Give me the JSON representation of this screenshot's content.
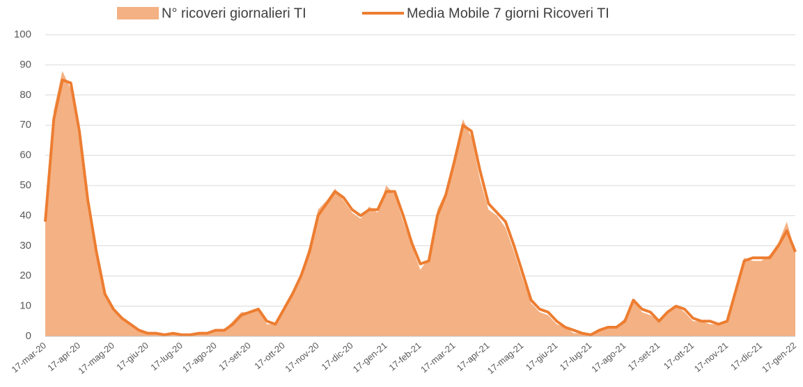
{
  "chart_data": {
    "type": "area-line",
    "categories": [
      "17-mar-20",
      null,
      null,
      null,
      "17-apr-20",
      null,
      null,
      null,
      "17-mag-20",
      null,
      null,
      null,
      "17-giu-20",
      null,
      null,
      null,
      "17-lug-20",
      null,
      null,
      null,
      "17-ago-20",
      null,
      null,
      null,
      "17-set-20",
      null,
      null,
      null,
      "17-ott-20",
      null,
      null,
      null,
      "17-nov-20",
      null,
      null,
      null,
      "17-dic-20",
      null,
      null,
      null,
      "17-gen-21",
      null,
      null,
      null,
      "17-feb-21",
      null,
      null,
      null,
      "17-mar-21",
      null,
      null,
      null,
      "17-apr-21",
      null,
      null,
      null,
      "17-mag-21",
      null,
      null,
      null,
      "17-giu-21",
      null,
      null,
      null,
      "17-lug-21",
      null,
      null,
      null,
      "17-ago-21",
      null,
      null,
      null,
      "17-set-21",
      null,
      null,
      null,
      "17-ott-21",
      null,
      null,
      null,
      "17-nov-21",
      null,
      null,
      null,
      "17-dic-21",
      null,
      null,
      null,
      "17-gen-22"
    ],
    "series": [
      {
        "name": "N° ricoveri giornalieri TI",
        "color": "#f4b183",
        "kind": "area",
        "values": [
          40,
          75,
          88,
          82,
          65,
          42,
          26,
          13,
          9,
          6,
          4,
          2,
          1,
          1,
          0,
          1,
          0,
          0,
          1,
          1,
          2,
          2,
          5,
          8,
          8,
          9,
          4,
          4,
          10,
          15,
          21,
          30,
          42,
          45,
          49,
          45,
          41,
          39,
          43,
          41,
          50,
          47,
          38,
          30,
          22,
          26,
          42,
          48,
          60,
          72,
          66,
          52,
          42,
          40,
          36,
          28,
          19,
          11,
          8,
          7,
          4,
          3,
          1,
          1,
          0,
          2,
          3,
          3,
          6,
          12,
          8,
          7,
          5,
          8,
          10,
          8,
          5,
          5,
          4,
          4,
          5,
          16,
          26,
          25,
          25,
          27,
          31,
          38,
          28
        ]
      },
      {
        "name": "Media Mobile 7 giorni Ricoveri TI",
        "color": "#ed7d31",
        "kind": "line",
        "values": [
          38,
          72,
          85,
          84,
          68,
          45,
          28,
          14,
          9,
          6,
          4,
          2,
          1,
          1,
          0.5,
          1,
          0.5,
          0.5,
          1,
          1,
          2,
          2,
          4,
          7,
          8,
          9,
          5,
          4,
          9,
          14,
          20,
          28,
          40,
          44,
          48,
          46,
          42,
          40,
          42,
          42,
          48,
          48,
          40,
          31,
          24,
          25,
          40,
          47,
          58,
          70,
          68,
          55,
          44,
          41,
          38,
          30,
          21,
          12,
          9,
          8,
          5,
          3,
          2,
          1,
          0.5,
          2,
          3,
          3,
          5,
          12,
          9,
          8,
          5,
          8,
          10,
          9,
          6,
          5,
          5,
          4,
          5,
          15,
          25,
          26,
          26,
          26,
          30,
          35,
          28
        ]
      }
    ],
    "ylim": [
      0,
      100
    ],
    "yticks": [
      0,
      10,
      20,
      30,
      40,
      50,
      60,
      70,
      80,
      90,
      100
    ],
    "grid": true
  }
}
